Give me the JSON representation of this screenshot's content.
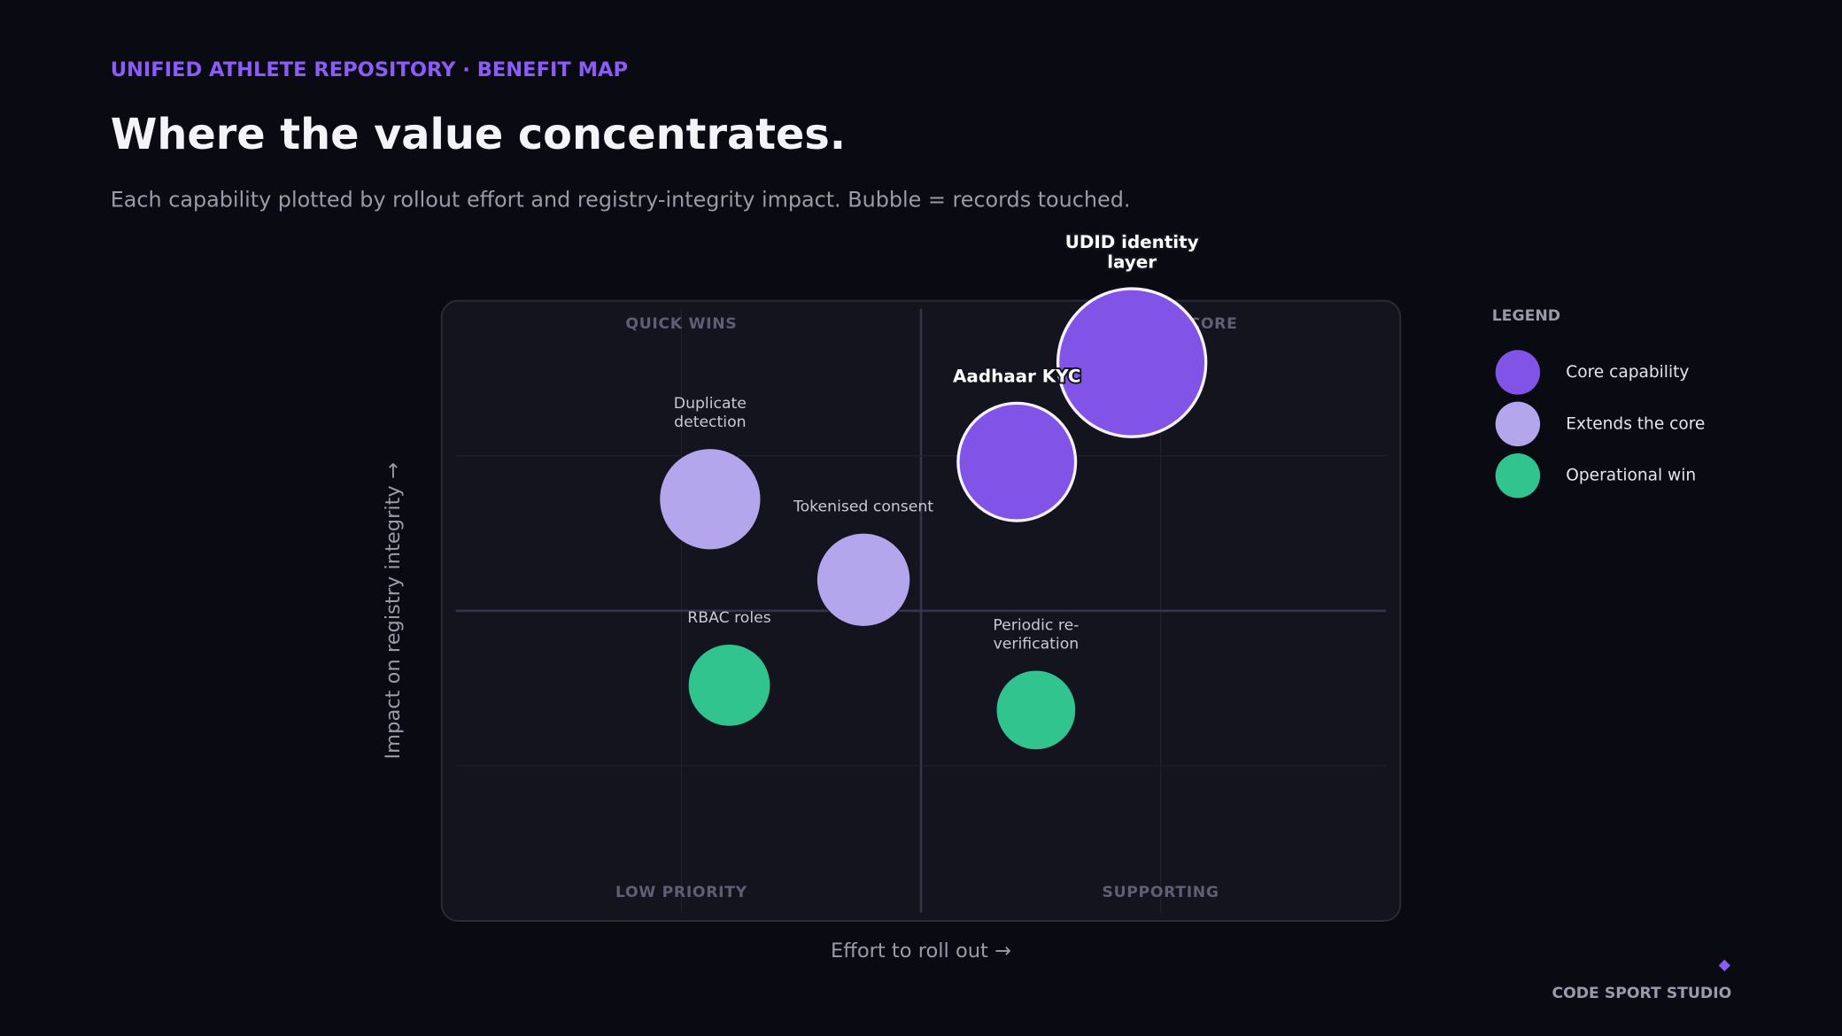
{
  "header": {
    "kicker": "UNIFIED ATHLETE REPOSITORY · BENEFIT MAP",
    "title": "Where the value concentrates.",
    "subtitle": "Each capability plotted by rollout effort and registry-integrity impact. Bubble = records touched."
  },
  "chart_data": {
    "type": "bubble",
    "x_label": "Effort to roll out  →",
    "y_label": "Impact on registry integrity  →",
    "xlim": [
      0,
      100
    ],
    "ylim": [
      0,
      100
    ],
    "xticks": [
      25,
      50,
      75
    ],
    "yticks": [
      25,
      50,
      75
    ],
    "grid": true,
    "quadrants": {
      "top_left": "QUICK WINS",
      "top_right": "STRATEGIC CORE",
      "bottom_left": "LOW PRIORITY",
      "bottom_right": "SUPPORTING"
    },
    "legend_title": "LEGEND",
    "series": [
      {
        "name": "Core capability",
        "color": "#8153e6",
        "outline": "#f4f2ff",
        "labels": [
          [
            "UDID identity",
            "layer"
          ],
          [
            "Aadhaar KYC"
          ]
        ],
        "x": [
          72,
          60
        ],
        "y": [
          90,
          74
        ],
        "size": [
          100,
          63
        ]
      },
      {
        "name": "Extends the core",
        "color": "#b3a6ec",
        "labels": [
          [
            "Duplicate",
            "detection"
          ],
          [
            "Tokenised consent"
          ]
        ],
        "x": [
          28,
          44
        ],
        "y": [
          68,
          55
        ],
        "size": [
          47,
          40
        ]
      },
      {
        "name": "Operational win",
        "color": "#31c48f",
        "labels": [
          [
            "RBAC roles"
          ],
          [
            "Periodic re-",
            "verification"
          ]
        ],
        "x": [
          30,
          62
        ],
        "y": [
          38,
          34
        ],
        "size": [
          31,
          29
        ]
      }
    ]
  },
  "footer": {
    "brand": "CODE SPORT STUDIO"
  }
}
